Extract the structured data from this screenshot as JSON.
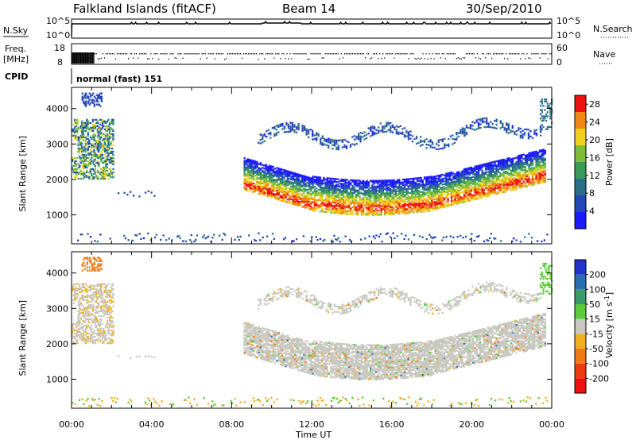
{
  "header": {
    "station": "Falkland Islands (fitACF)",
    "beam": "Beam 14",
    "date": "30/Sep/2010"
  },
  "panels": {
    "nsky": {
      "label": "N.Sky",
      "tick_top": "10^5",
      "tick_bottom": "10^0",
      "right_label": "N.Search",
      "right_tick_top": "10^5",
      "right_tick_bottom": "10^0"
    },
    "freq": {
      "label_line1": "Freq.",
      "label_line2": "[MHz]",
      "tick_top": "18",
      "tick_bottom": "8",
      "right_label": "Nave",
      "right_tick_top": "60",
      "right_tick_bottom": "0"
    },
    "cpid": {
      "label": "CPID",
      "program": "normal (fast) 151"
    }
  },
  "chart_data": [
    {
      "type": "heatmap",
      "name": "power",
      "ylabel": "Slant Range [km]",
      "xlabel": "Time UT",
      "x_ticks": [
        "00:00",
        "04:00",
        "08:00",
        "12:00",
        "16:00",
        "20:00",
        "00:00"
      ],
      "xlim_hours": [
        0,
        24
      ],
      "y_ticks": [
        1000,
        2000,
        3000,
        4000
      ],
      "ylim": [
        180,
        4600
      ],
      "colorbar": {
        "label": "Power [dB]",
        "ticks": [
          4,
          8,
          12,
          16,
          20,
          24,
          28
        ],
        "range": [
          0,
          30
        ],
        "colors": [
          "#1a1aff",
          "#2448b8",
          "#2a6e8a",
          "#3a9a5a",
          "#7ebd3a",
          "#f0d21e",
          "#f08a14",
          "#ee1010"
        ]
      }
    },
    {
      "type": "heatmap",
      "name": "velocity",
      "ylabel": "Slant Range [km]",
      "xlabel": "Time UT",
      "x_ticks": [
        "00:00",
        "04:00",
        "08:00",
        "12:00",
        "16:00",
        "20:00",
        "00:00"
      ],
      "xlim_hours": [
        0,
        24
      ],
      "y_ticks": [
        1000,
        2000,
        3000,
        4000
      ],
      "ylim": [
        180,
        4600
      ],
      "colorbar": {
        "label": "Velocity [m s",
        "label_sup": "-1",
        "label_end": "]",
        "ticks": [
          200,
          100,
          50,
          15,
          -15,
          -50,
          -100,
          -200
        ],
        "colors": [
          "#2233cc",
          "#2a6eb0",
          "#3a9a6a",
          "#5ccb3a",
          "#c8c8c0",
          "#f0b020",
          "#f07a14",
          "#ee3a10",
          "#ee1010"
        ]
      }
    }
  ]
}
